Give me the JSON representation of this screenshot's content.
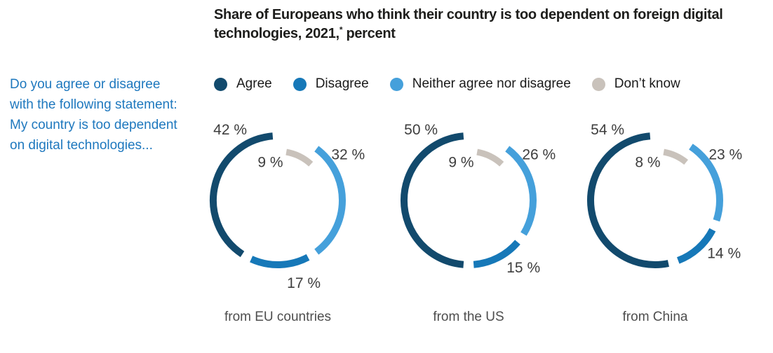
{
  "header": {
    "title_main": "Share of Europeans who think their country is too dependent on foreign digital technologies, 2021,",
    "title_sup": "*",
    "title_suffix": " percent"
  },
  "question": {
    "text": "Do you agree or disagree with the following statement: My country is too dependent on digital technologies...",
    "color": "#1e78be"
  },
  "legend": {
    "items": [
      {
        "label": "Agree",
        "color": "#124a6d"
      },
      {
        "label": "Disagree",
        "color": "#1678b8"
      },
      {
        "label": "Neither agree nor disagree",
        "color": "#45a0db"
      },
      {
        "label": "Don’t know",
        "color": "#c9c2bb"
      }
    ]
  },
  "chart_data": {
    "type": "pie",
    "variant": "segmented-open-ring-donut",
    "title": "Share of Europeans who think their country is too dependent on foreign digital technologies, 2021, percent",
    "unit": "%",
    "categories": [
      "Agree",
      "Disagree",
      "Neither agree nor disagree",
      "Don’t know"
    ],
    "colors": [
      "#124a6d",
      "#1678b8",
      "#45a0db",
      "#c9c2bb"
    ],
    "legend_position": "top",
    "layout": "three donuts in a row; segments clockwise from 12 o’clock: Don’t know (inset ring), Neither, Disagree, Agree",
    "charts": [
      {
        "label": "from EU countries",
        "values": [
          42,
          17,
          32,
          9
        ]
      },
      {
        "label": "from the US",
        "values": [
          50,
          15,
          26,
          9
        ]
      },
      {
        "label": "from China",
        "values": [
          54,
          14,
          23,
          8
        ]
      }
    ]
  }
}
